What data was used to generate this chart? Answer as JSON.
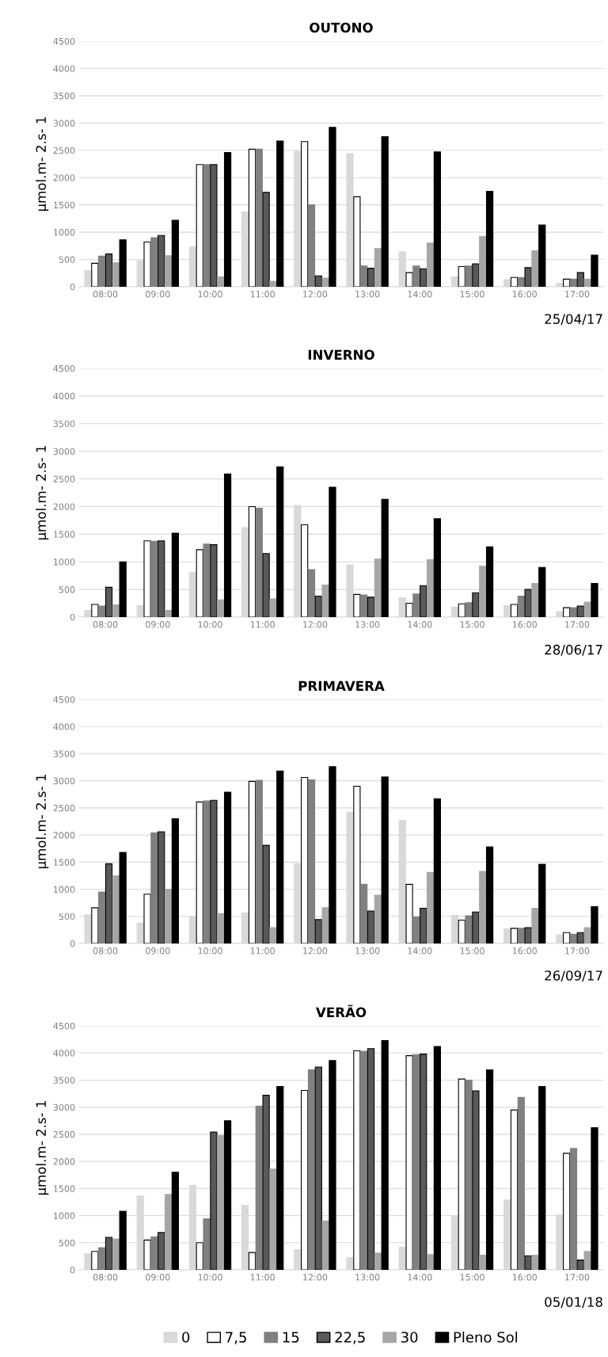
{
  "chart_data": [
    {
      "type": "bar",
      "title": "OUTONO",
      "ylabel": "µmol.m- 2.s- 1",
      "annotations": [
        "25/04/17"
      ],
      "categories": [
        "08:00",
        "09:00",
        "10:00",
        "11:00",
        "12:00",
        "13:00",
        "14:00",
        "15:00",
        "16:00",
        "17:00"
      ],
      "ylim": [
        0,
        4500
      ],
      "yticks": [
        0,
        500,
        1000,
        1500,
        2000,
        2500,
        3000,
        3500,
        4000,
        4500
      ],
      "grid": "y",
      "series": [
        {
          "color": "#d9d9d9",
          "values": [
            300,
            480,
            730,
            1370,
            2480,
            2440,
            640,
            180,
            130,
            60
          ]
        },
        {
          "color": "#ffffff",
          "values": [
            430,
            820,
            2240,
            2520,
            2660,
            1650,
            260,
            370,
            170,
            140
          ]
        },
        {
          "color": "#808080",
          "values": [
            560,
            900,
            2240,
            2520,
            1500,
            380,
            380,
            380,
            170,
            140
          ]
        },
        {
          "color": "#595959",
          "values": [
            600,
            940,
            2240,
            1730,
            200,
            340,
            330,
            420,
            350,
            260
          ]
        },
        {
          "color": "#a6a6a6",
          "values": [
            440,
            570,
            180,
            100,
            160,
            700,
            800,
            920,
            660,
            140
          ]
        },
        {
          "color": "#000000",
          "values": [
            860,
            1220,
            2460,
            2670,
            2920,
            2750,
            2470,
            1750,
            1130,
            580
          ]
        }
      ]
    },
    {
      "type": "bar",
      "title": "INVERNO",
      "ylabel": "µmol.m- 2.s- 1",
      "annotations": [
        "28/06/17"
      ],
      "categories": [
        "08:00",
        "09:00",
        "10:00",
        "11:00",
        "12:00",
        "13:00",
        "14:00",
        "15:00",
        "16:00",
        "17:00"
      ],
      "ylim": [
        0,
        4500
      ],
      "yticks": [
        0,
        500,
        1000,
        1500,
        2000,
        2500,
        3000,
        3500,
        4000,
        4500
      ],
      "grid": "y",
      "series": [
        {
          "color": "#d9d9d9",
          "values": [
            120,
            210,
            810,
            1620,
            2020,
            940,
            350,
            180,
            210,
            100
          ]
        },
        {
          "color": "#ffffff",
          "values": [
            230,
            1380,
            1220,
            2000,
            1670,
            410,
            250,
            240,
            230,
            170
          ]
        },
        {
          "color": "#808080",
          "values": [
            200,
            1370,
            1320,
            1970,
            860,
            400,
            420,
            260,
            380,
            170
          ]
        },
        {
          "color": "#595959",
          "values": [
            540,
            1380,
            1310,
            1150,
            380,
            360,
            570,
            440,
            500,
            200
          ]
        },
        {
          "color": "#a6a6a6",
          "values": [
            220,
            120,
            310,
            330,
            580,
            1050,
            1040,
            920,
            610,
            270
          ]
        },
        {
          "color": "#000000",
          "values": [
            1000,
            1520,
            2590,
            2720,
            2350,
            2130,
            1780,
            1270,
            900,
            610
          ]
        }
      ]
    },
    {
      "type": "bar",
      "title": "PRIMAVERA",
      "ylabel": "µmol.m- 2.s- 1",
      "annotations": [
        "26/09/17"
      ],
      "categories": [
        "08:00",
        "09:00",
        "10:00",
        "11:00",
        "12:00",
        "13:00",
        "14:00",
        "15:00",
        "16:00",
        "17:00"
      ],
      "ylim": [
        0,
        4500
      ],
      "yticks": [
        0,
        500,
        1000,
        1500,
        2000,
        2500,
        3000,
        3500,
        4000,
        4500
      ],
      "grid": "y",
      "series": [
        {
          "color": "#d9d9d9",
          "values": [
            530,
            380,
            490,
            560,
            1470,
            2420,
            2270,
            520,
            270,
            160
          ]
        },
        {
          "color": "#ffffff",
          "values": [
            660,
            910,
            2610,
            2990,
            3060,
            2900,
            1090,
            430,
            280,
            200
          ]
        },
        {
          "color": "#808080",
          "values": [
            950,
            2040,
            2630,
            3010,
            3020,
            1090,
            490,
            510,
            280,
            170
          ]
        },
        {
          "color": "#595959",
          "values": [
            1470,
            2060,
            2640,
            1810,
            440,
            600,
            650,
            580,
            290,
            200
          ]
        },
        {
          "color": "#a6a6a6",
          "values": [
            1250,
            1000,
            550,
            290,
            660,
            890,
            1310,
            1330,
            650,
            290
          ]
        },
        {
          "color": "#000000",
          "values": [
            1680,
            2300,
            2790,
            3180,
            3260,
            3070,
            2670,
            1780,
            1460,
            680
          ]
        }
      ]
    },
    {
      "type": "bar",
      "title": "VERÃO",
      "ylabel": "µmol.m- 2.s- 1",
      "annotations": [
        "05/01/18"
      ],
      "categories": [
        "08:00",
        "09:00",
        "10:00",
        "11:00",
        "12:00",
        "13:00",
        "14:00",
        "15:00",
        "16:00",
        "17:00"
      ],
      "ylim": [
        0,
        4500
      ],
      "yticks": [
        0,
        500,
        1000,
        1500,
        2000,
        2500,
        3000,
        3500,
        4000,
        4500
      ],
      "grid": "y",
      "legend": "bottom",
      "series": [
        {
          "name": "0",
          "color": "#d9d9d9",
          "values": [
            300,
            1360,
            1560,
            1190,
            370,
            230,
            420,
            990,
            1290,
            1010
          ]
        },
        {
          "name": "7,5",
          "color": "#ffffff",
          "values": [
            340,
            550,
            500,
            320,
            3310,
            4040,
            3950,
            3520,
            2950,
            2150
          ]
        },
        {
          "name": "15",
          "color": "#808080",
          "values": [
            410,
            610,
            940,
            3020,
            3690,
            4030,
            3970,
            3500,
            3180,
            2240
          ]
        },
        {
          "name": "22,5",
          "color": "#595959",
          "values": [
            600,
            690,
            2540,
            3220,
            3740,
            4080,
            3980,
            3300,
            260,
            180
          ]
        },
        {
          "name": "30",
          "color": "#a6a6a6",
          "values": [
            570,
            1390,
            2480,
            1860,
            900,
            310,
            280,
            270,
            270,
            340
          ]
        },
        {
          "name": "Pleno Sol",
          "color": "#000000",
          "values": [
            1080,
            1800,
            2750,
            3380,
            3860,
            4230,
            4120,
            3690,
            3380,
            2620
          ]
        }
      ]
    }
  ]
}
